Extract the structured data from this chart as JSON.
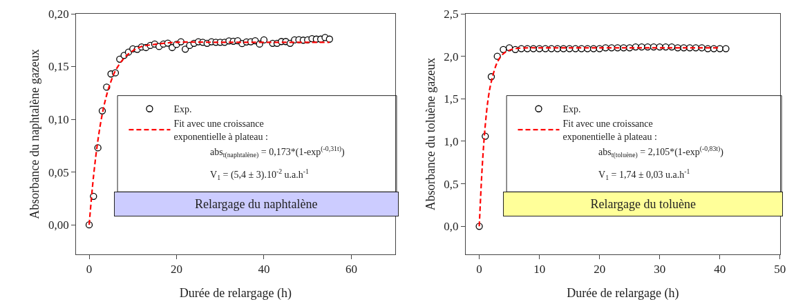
{
  "chart_data": [
    {
      "type": "scatter",
      "xlabel": "Durée de relargage (h)",
      "ylabel": "Absorbance du naphtalène gazeux",
      "xlim": [
        -3,
        70
      ],
      "ylim": [
        -0.028,
        0.2
      ],
      "xticks": [
        0,
        20,
        40,
        60
      ],
      "yticks": [
        {
          "value": 0,
          "label": "0,00"
        },
        {
          "value": 0.05,
          "label": "0,05"
        },
        {
          "value": 0.1,
          "label": "0,10"
        },
        {
          "value": 0.15,
          "label": "0,15"
        },
        {
          "value": 0.2,
          "label": "0,20"
        }
      ],
      "legend": "left",
      "marker": "circle",
      "series": [
        {
          "name": "Exp.",
          "color": "#000000",
          "x": [
            0,
            1,
            2,
            3,
            4,
            5,
            6,
            7,
            8,
            9,
            10,
            11,
            12,
            13,
            14,
            15,
            16,
            17,
            18,
            19,
            20,
            21,
            22,
            23,
            24,
            25,
            26,
            27,
            28,
            29,
            30,
            31,
            32,
            33,
            34,
            35,
            36,
            37,
            38,
            39,
            40,
            42,
            43,
            44,
            45,
            46,
            47,
            48,
            49,
            50,
            51,
            52,
            53,
            54,
            55
          ],
          "values": [
            0,
            0.027,
            0.073,
            0.108,
            0.1305,
            0.143,
            0.144,
            0.157,
            0.1606,
            0.1636,
            0.1668,
            0.1663,
            0.1685,
            0.168,
            0.17,
            0.1713,
            0.169,
            0.1713,
            0.1722,
            0.168,
            0.171,
            0.1735,
            0.1665,
            0.17,
            0.172,
            0.1735,
            0.173,
            0.172,
            0.1735,
            0.173,
            0.173,
            0.173,
            0.1743,
            0.174,
            0.1745,
            0.1718,
            0.1733,
            0.1735,
            0.1745,
            0.1713,
            0.1752,
            0.172,
            0.172,
            0.1737,
            0.1737,
            0.172,
            0.1752,
            0.1754,
            0.175,
            0.1752,
            0.1764,
            0.176,
            0.176,
            0.1775,
            0.176
          ]
        },
        {
          "name": "Fit avec une croissance\nexponentielle à plateau :",
          "type": "line",
          "color": "#ff0000",
          "line_style": "dashed",
          "marker": "none",
          "x": [
            0,
            1,
            2,
            3,
            4,
            5,
            6,
            8,
            10,
            12,
            15,
            20,
            30,
            40,
            55
          ],
          "values": [
            0,
            0.046,
            0.08,
            0.105,
            0.123,
            0.136,
            0.146,
            0.158,
            0.165,
            0.169,
            0.171,
            0.173,
            0.173,
            0.173,
            0.173
          ]
        }
      ],
      "annotations": [
        "abs$_{t(naphtalène)}$ = 0,173*(1-exp$^{(-0,31t)}$)",
        "V$_{1}$ = (5,4 ± 3).10$^{-2}$ u.a.h$^{-1}$",
        "Relargage du naphtalène"
      ]
    },
    {
      "type": "scatter",
      "xlabel": "Durée de relargage (h)",
      "ylabel": "Absorbance du toluène gazeux",
      "xlim": [
        -2.25,
        50
      ],
      "ylim": [
        -0.33,
        2.5
      ],
      "xticks": [
        0,
        10,
        20,
        30,
        40,
        50
      ],
      "yticks": [
        {
          "value": 0,
          "label": "0,0"
        },
        {
          "value": 0.5,
          "label": "0,5"
        },
        {
          "value": 1,
          "label": "1,0"
        },
        {
          "value": 1.5,
          "label": "1,5"
        },
        {
          "value": 2,
          "label": "2,0"
        },
        {
          "value": 2.5,
          "label": "2,5"
        }
      ],
      "legend": "left",
      "marker": "circle",
      "series": [
        {
          "name": "Exp.",
          "color": "#000000",
          "x": [
            0,
            1,
            2,
            3,
            4,
            5,
            6,
            7,
            8,
            9,
            10,
            11,
            12,
            13,
            14,
            15,
            16,
            17,
            18,
            19,
            20,
            21,
            22,
            23,
            24,
            25,
            26,
            27,
            28,
            29,
            30,
            31,
            32,
            33,
            34,
            35,
            36,
            37,
            38,
            39,
            40,
            41
          ],
          "values": [
            0,
            1.06,
            1.76,
            2.0,
            2.08,
            2.1,
            2.08,
            2.09,
            2.09,
            2.09,
            2.09,
            2.09,
            2.09,
            2.09,
            2.09,
            2.09,
            2.09,
            2.09,
            2.09,
            2.09,
            2.09,
            2.1,
            2.1,
            2.1,
            2.1,
            2.1,
            2.11,
            2.11,
            2.11,
            2.11,
            2.11,
            2.11,
            2.11,
            2.1,
            2.1,
            2.1,
            2.1,
            2.1,
            2.09,
            2.09,
            2.09,
            2.09
          ]
        },
        {
          "name": "Fit avec une croissance\nexponentielle à plateau :",
          "type": "line",
          "color": "#ff0000",
          "line_style": "dashed",
          "marker": "none",
          "x": [
            0,
            0.5,
            1,
            1.5,
            2,
            3,
            4,
            5,
            6,
            8,
            10,
            20,
            40
          ],
          "values": [
            0,
            0.71,
            1.19,
            1.51,
            1.7,
            1.93,
            2.03,
            2.07,
            2.09,
            2.1,
            2.1,
            2.1,
            2.1
          ]
        }
      ],
      "annotations": [
        "abs$_{t(toluène)}$ = 2,105*(1-exp$^{(-0,83t)}$)",
        "V$_{1}$ = 1,74 ± 0,03 u.a.h$^{-1}$",
        "Relargage du toluène"
      ]
    }
  ]
}
